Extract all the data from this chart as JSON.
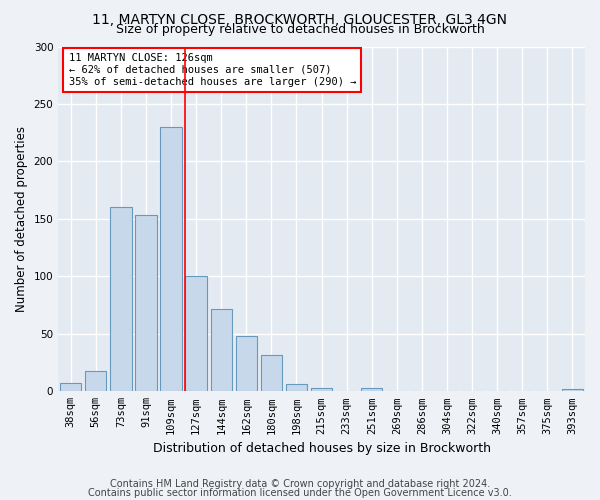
{
  "title1": "11, MARTYN CLOSE, BROCKWORTH, GLOUCESTER, GL3 4GN",
  "title2": "Size of property relative to detached houses in Brockworth",
  "xlabel": "Distribution of detached houses by size in Brockworth",
  "ylabel": "Number of detached properties",
  "categories": [
    "38sqm",
    "56sqm",
    "73sqm",
    "91sqm",
    "109sqm",
    "127sqm",
    "144sqm",
    "162sqm",
    "180sqm",
    "198sqm",
    "215sqm",
    "233sqm",
    "251sqm",
    "269sqm",
    "286sqm",
    "304sqm",
    "322sqm",
    "340sqm",
    "357sqm",
    "375sqm",
    "393sqm"
  ],
  "values": [
    7,
    18,
    160,
    153,
    230,
    100,
    72,
    48,
    32,
    6,
    3,
    0,
    3,
    0,
    0,
    0,
    0,
    0,
    0,
    0,
    2
  ],
  "bar_color": "#c8d8eb",
  "bar_edge_color": "#6699bb",
  "red_line_index": 5,
  "annotation_text": "11 MARTYN CLOSE: 126sqm\n← 62% of detached houses are smaller (507)\n35% of semi-detached houses are larger (290) →",
  "ylim": [
    0,
    300
  ],
  "yticks": [
    0,
    50,
    100,
    150,
    200,
    250,
    300
  ],
  "footer1": "Contains HM Land Registry data © Crown copyright and database right 2024.",
  "footer2": "Contains public sector information licensed under the Open Government Licence v3.0.",
  "bg_color": "#eef2f7",
  "plot_bg_color": "#e4eaf2",
  "grid_color": "#ffffff",
  "title1_fontsize": 10,
  "title2_fontsize": 9,
  "xlabel_fontsize": 9,
  "ylabel_fontsize": 8.5,
  "tick_fontsize": 7.5,
  "footer_fontsize": 7
}
